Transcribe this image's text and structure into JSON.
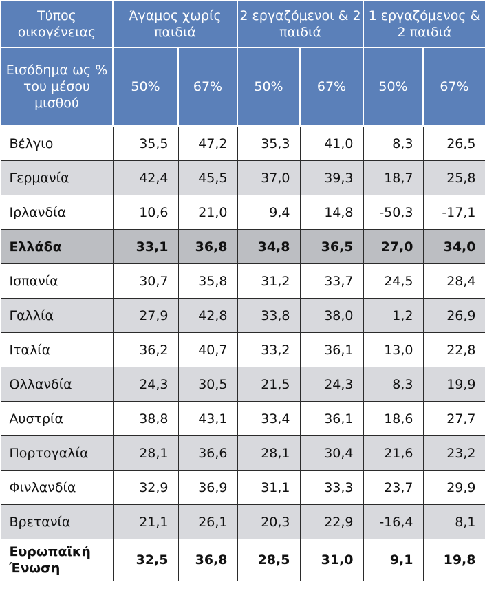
{
  "header": {
    "family_type": "Τύπος οικογένειας",
    "groups": [
      "Άγαμος χωρίς παιδιά",
      "2 εργαζόμενοι & 2 παιδιά",
      "1 εργαζόμενος & 2 παιδιά"
    ],
    "income_label": "Εισόδημα ως % του μέσου μισθού",
    "sub": [
      "50%",
      "67%",
      "50%",
      "67%",
      "50%",
      "67%"
    ]
  },
  "rows": [
    {
      "country": "Βέλγιο",
      "values": [
        "35,5",
        "47,2",
        "35,3",
        "41,0",
        "8,3",
        "26,5"
      ]
    },
    {
      "country": "Γερμανία",
      "values": [
        "42,4",
        "45,5",
        "37,0",
        "39,3",
        "18,7",
        "25,8"
      ]
    },
    {
      "country": "Ιρλανδία",
      "values": [
        "10,6",
        "21,0",
        "9,4",
        "14,8",
        "-50,3",
        "-17,1"
      ]
    },
    {
      "country": "Ελλάδα",
      "values": [
        "33,1",
        "36,8",
        "34,8",
        "36,5",
        "27,0",
        "34,0"
      ]
    },
    {
      "country": "Ισπανία",
      "values": [
        "30,7",
        "35,8",
        "31,2",
        "33,7",
        "24,5",
        "28,4"
      ]
    },
    {
      "country": "Γαλλία",
      "values": [
        "27,9",
        "42,8",
        "33,8",
        "38,0",
        "1,2",
        "26,9"
      ]
    },
    {
      "country": "Ιταλία",
      "values": [
        "36,2",
        "40,7",
        "33,2",
        "36,1",
        "13,0",
        "22,8"
      ]
    },
    {
      "country": "Ολλανδία",
      "values": [
        "24,3",
        "30,5",
        "21,5",
        "24,3",
        "8,3",
        "19,9"
      ]
    },
    {
      "country": "Αυστρία",
      "values": [
        "38,8",
        "43,1",
        "33,4",
        "36,1",
        "18,6",
        "27,7"
      ]
    },
    {
      "country": "Πορτογαλία",
      "values": [
        "28,1",
        "36,6",
        "28,1",
        "30,4",
        "21,6",
        "23,2"
      ]
    },
    {
      "country": "Φινλανδία",
      "values": [
        "32,9",
        "36,9",
        "31,1",
        "33,3",
        "23,7",
        "29,9"
      ]
    },
    {
      "country": "Βρετανία",
      "values": [
        "21,1",
        "26,1",
        "20,3",
        "22,9",
        "-16,4",
        "8,1"
      ]
    },
    {
      "country": "Ευρωπαϊκή Ένωση",
      "values": [
        "32,5",
        "36,8",
        "28,5",
        "31,0",
        "9,1",
        "19,8"
      ]
    }
  ],
  "colors": {
    "header_bg": "#5b80b9",
    "header_text": "#ffffff",
    "stripe_bg": "#d8d9dd",
    "highlight_bg": "#bcbec2"
  }
}
